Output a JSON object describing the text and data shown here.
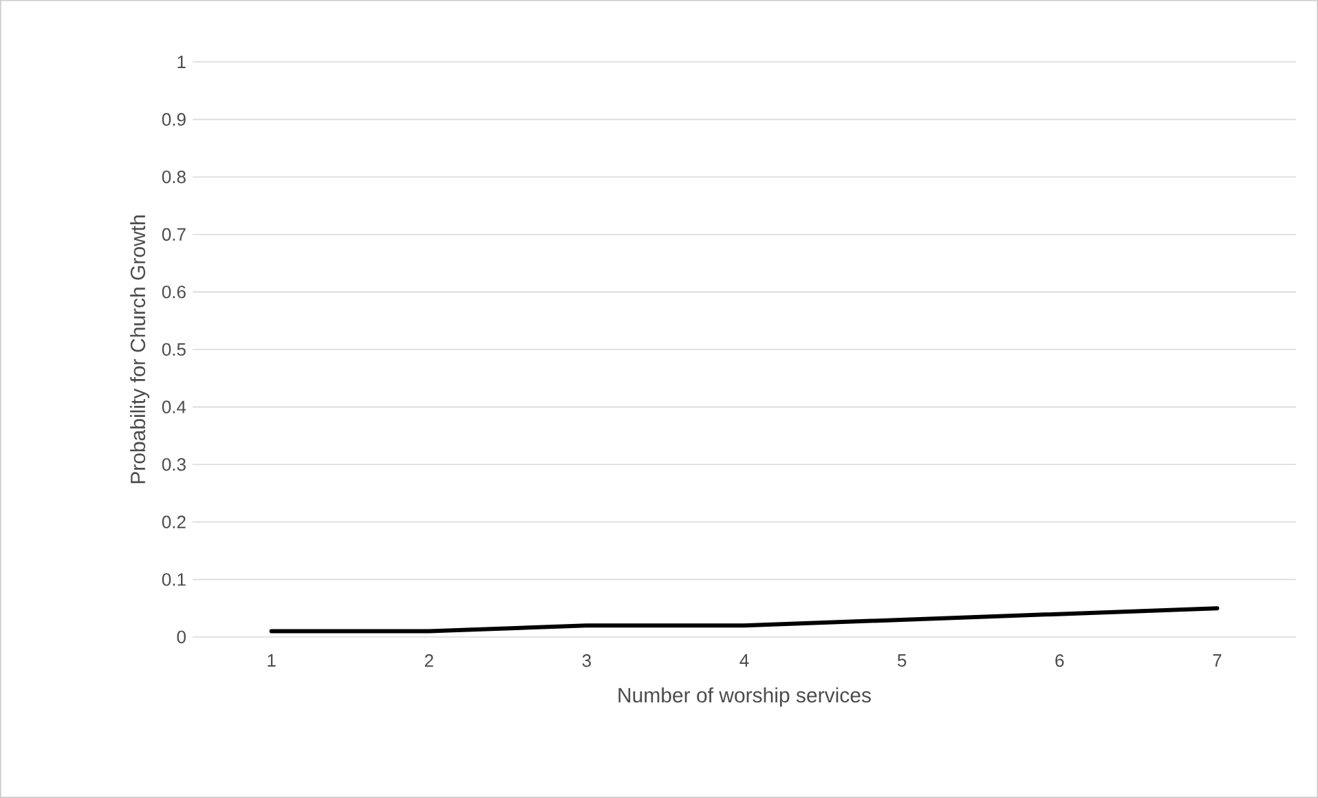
{
  "chart_data": {
    "type": "line",
    "xlabel": "Number of worship services",
    "ylabel": "Probability for Church Growth",
    "categories": [
      "1",
      "2",
      "3",
      "4",
      "5",
      "6",
      "7"
    ],
    "series": [
      {
        "color": "#000000",
        "values": [
          0.01,
          0.01,
          0.02,
          0.02,
          0.03,
          0.04,
          0.05
        ]
      }
    ],
    "ylim": [
      0,
      1
    ],
    "yticks": [
      0,
      0.1,
      0.2,
      0.3,
      0.4,
      0.5,
      0.6,
      0.7,
      0.8,
      0.9,
      1
    ],
    "grid": "y",
    "marker": "none",
    "line_style": "solid"
  }
}
